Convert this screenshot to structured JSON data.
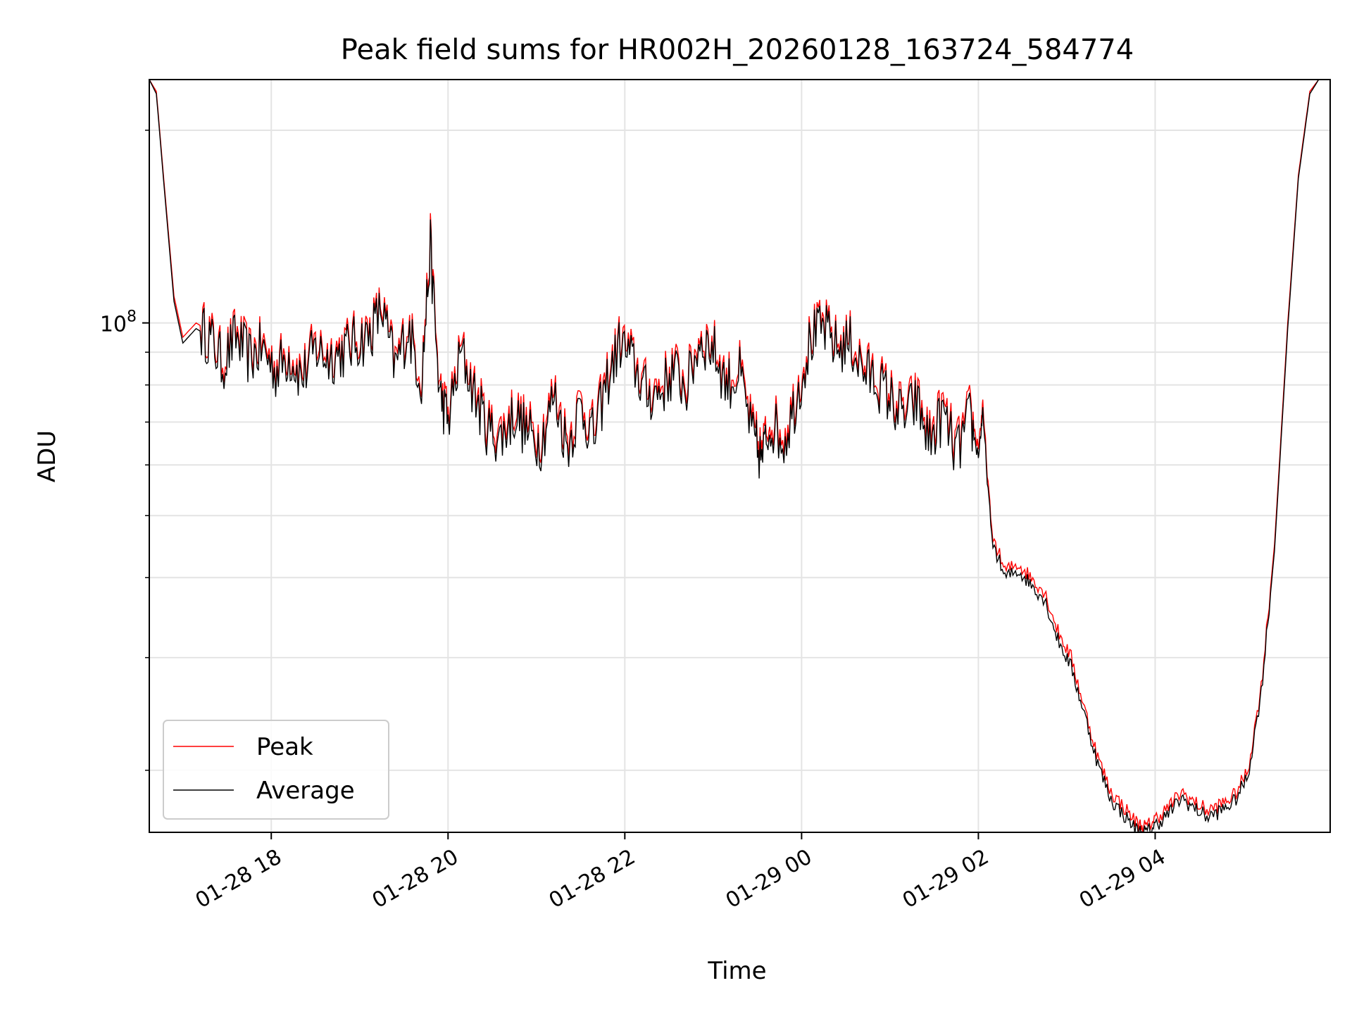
{
  "chart_data": {
    "type": "line",
    "title": "Peak field sums for HR002H_20260128_163724_584774",
    "xlabel": "Time",
    "ylabel": "ADU",
    "yscale": "log",
    "ylim": [
      16000000,
      240000000
    ],
    "xlim": [
      16.62,
      29.98
    ],
    "grid": true,
    "x_ticks": [
      {
        "value": 18,
        "label": "01-28 18"
      },
      {
        "value": 20,
        "label": "01-28 20"
      },
      {
        "value": 22,
        "label": "01-28 22"
      },
      {
        "value": 24,
        "label": "01-29 00"
      },
      {
        "value": 26,
        "label": "01-29 02"
      },
      {
        "value": 28,
        "label": "01-29 04"
      }
    ],
    "y_major_ticks": [
      {
        "value": 100000000,
        "base": "10",
        "exp": "8"
      }
    ],
    "y_minor_ticks": [
      20000000,
      30000000,
      40000000,
      50000000,
      60000000,
      70000000,
      80000000,
      90000000,
      200000000
    ],
    "legend_position": "lower-left",
    "series": [
      {
        "name": "Peak",
        "color": "#ff0000",
        "x": [
          16.62,
          16.7,
          16.78,
          16.9,
          17.0,
          17.15,
          17.3,
          17.45,
          17.6,
          17.75,
          17.9,
          18.05,
          18.2,
          18.35,
          18.5,
          18.65,
          18.8,
          18.95,
          19.1,
          19.25,
          19.4,
          19.55,
          19.7,
          19.8,
          19.9,
          20.0,
          20.15,
          20.3,
          20.45,
          20.6,
          20.75,
          20.9,
          21.05,
          21.2,
          21.35,
          21.5,
          21.65,
          21.8,
          21.95,
          22.1,
          22.25,
          22.4,
          22.55,
          22.7,
          22.85,
          23.0,
          23.15,
          23.3,
          23.45,
          23.55,
          23.65,
          23.8,
          23.95,
          24.1,
          24.25,
          24.4,
          24.55,
          24.7,
          24.85,
          25.0,
          25.15,
          25.3,
          25.45,
          25.6,
          25.75,
          25.9,
          26.0,
          26.05,
          26.15,
          26.3,
          26.45,
          26.6,
          26.75,
          26.9,
          27.05,
          27.2,
          27.35,
          27.5,
          27.65,
          27.8,
          27.9,
          28.0,
          28.15,
          28.3,
          28.45,
          28.6,
          28.75,
          28.9,
          29.05,
          29.2,
          29.35,
          29.5,
          29.62,
          29.75,
          29.85,
          29.98
        ],
        "y": [
          240000000,
          230000000,
          170000000,
          110000000,
          95000000,
          100000000,
          97000000,
          88000000,
          97000000,
          90000000,
          93000000,
          86000000,
          91000000,
          84000000,
          93000000,
          90000000,
          92000000,
          95000000,
          97000000,
          107000000,
          87000000,
          100000000,
          83000000,
          134000000,
          80000000,
          72000000,
          92000000,
          79000000,
          70000000,
          68000000,
          74000000,
          69000000,
          67000000,
          79000000,
          66000000,
          76000000,
          68000000,
          83000000,
          95000000,
          88000000,
          79000000,
          80000000,
          86000000,
          81000000,
          96000000,
          93000000,
          82000000,
          85000000,
          68000000,
          63000000,
          72000000,
          67000000,
          79000000,
          96000000,
          100000000,
          93000000,
          95000000,
          86000000,
          83000000,
          78000000,
          73000000,
          77000000,
          67000000,
          74000000,
          64000000,
          73000000,
          64000000,
          74000000,
          47000000,
          41000000,
          42000000,
          40000000,
          38000000,
          33000000,
          30000000,
          25000000,
          21000000,
          18500000,
          17500000,
          16500000,
          16300000,
          16800000,
          17500000,
          18500000,
          17800000,
          17300000,
          17700000,
          18300000,
          20000000,
          27000000,
          45000000,
          100000000,
          170000000,
          230000000,
          240000000,
          240000000
        ]
      },
      {
        "name": "Average",
        "color": "#000000",
        "x": [
          16.62,
          16.7,
          16.78,
          16.9,
          17.0,
          17.15,
          17.3,
          17.45,
          17.6,
          17.75,
          17.9,
          18.05,
          18.2,
          18.35,
          18.5,
          18.65,
          18.8,
          18.95,
          19.1,
          19.25,
          19.4,
          19.55,
          19.7,
          19.8,
          19.9,
          20.0,
          20.15,
          20.3,
          20.45,
          20.6,
          20.75,
          20.9,
          21.05,
          21.2,
          21.35,
          21.5,
          21.65,
          21.8,
          21.95,
          22.1,
          22.25,
          22.4,
          22.55,
          22.7,
          22.85,
          23.0,
          23.15,
          23.3,
          23.45,
          23.55,
          23.65,
          23.8,
          23.95,
          24.1,
          24.25,
          24.4,
          24.55,
          24.7,
          24.85,
          25.0,
          25.15,
          25.3,
          25.45,
          25.6,
          25.75,
          25.9,
          26.0,
          26.05,
          26.15,
          26.3,
          26.45,
          26.6,
          26.75,
          26.9,
          27.05,
          27.2,
          27.35,
          27.5,
          27.65,
          27.8,
          27.9,
          28.0,
          28.15,
          28.3,
          28.45,
          28.6,
          28.75,
          28.9,
          29.05,
          29.2,
          29.35,
          29.5,
          29.62,
          29.75,
          29.85,
          29.98
        ],
        "y": [
          240000000,
          228000000,
          168000000,
          108000000,
          93000000,
          98000000,
          95000000,
          86000000,
          95000000,
          88000000,
          91000000,
          84000000,
          89000000,
          82000000,
          91000000,
          88000000,
          90000000,
          93000000,
          95000000,
          105000000,
          85000000,
          98000000,
          81000000,
          131000000,
          78000000,
          70000000,
          90000000,
          77000000,
          68000000,
          66000000,
          72000000,
          67000000,
          65000000,
          77000000,
          64000000,
          74000000,
          66000000,
          81000000,
          93000000,
          86000000,
          77000000,
          78000000,
          84000000,
          79000000,
          94000000,
          91000000,
          80000000,
          83000000,
          66000000,
          61000000,
          70000000,
          65000000,
          77000000,
          94000000,
          98000000,
          91000000,
          93000000,
          84000000,
          81000000,
          76000000,
          71000000,
          75000000,
          65000000,
          72000000,
          62000000,
          71000000,
          62000000,
          72000000,
          46000000,
          40000000,
          41000000,
          39000000,
          37000000,
          32000000,
          29000000,
          24500000,
          20500000,
          18000000,
          17000000,
          16100000,
          16000000,
          16400000,
          17100000,
          18100000,
          17400000,
          16900000,
          17300000,
          17900000,
          19600000,
          26500000,
          44000000,
          98000000,
          168000000,
          228000000,
          240000000,
          240000000
        ]
      }
    ]
  }
}
